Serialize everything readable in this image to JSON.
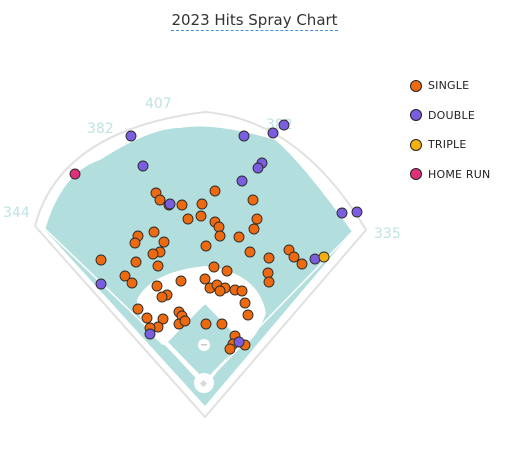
{
  "chart_data": {
    "type": "scatter",
    "title": "2023 Hits Spray Chart",
    "fence_distances": [
      "344",
      "382",
      "407",
      "382",
      "335"
    ],
    "legend_position": "top-right",
    "series": [
      {
        "name": "SINGLE",
        "color": "#ee6a10",
        "points": [
          [
            156,
            193
          ],
          [
            160,
            200
          ],
          [
            169,
            205
          ],
          [
            215,
            191
          ],
          [
            202,
            204
          ],
          [
            182,
            205
          ],
          [
            253,
            200
          ],
          [
            201,
            216
          ],
          [
            188,
            219
          ],
          [
            215,
            222
          ],
          [
            219,
            227
          ],
          [
            257,
            219
          ],
          [
            138,
            236
          ],
          [
            135,
            243
          ],
          [
            154,
            232
          ],
          [
            164,
            242
          ],
          [
            160,
            252
          ],
          [
            153,
            254
          ],
          [
            136,
            262
          ],
          [
            220,
            236
          ],
          [
            254,
            229
          ],
          [
            206,
            246
          ],
          [
            239,
            237
          ],
          [
            250,
            252
          ],
          [
            289,
            250
          ],
          [
            101,
            260
          ],
          [
            125,
            276
          ],
          [
            132,
            283
          ],
          [
            158,
            266
          ],
          [
            157,
            286
          ],
          [
            181,
            281
          ],
          [
            214,
            267
          ],
          [
            227,
            271
          ],
          [
            205,
            279
          ],
          [
            269,
            258
          ],
          [
            294,
            257
          ],
          [
            302,
            264
          ],
          [
            268,
            273
          ],
          [
            269,
            282
          ],
          [
            167,
            295
          ],
          [
            162,
            297
          ],
          [
            210,
            288
          ],
          [
            217,
            285
          ],
          [
            225,
            288
          ],
          [
            220,
            291
          ],
          [
            235,
            290
          ],
          [
            242,
            291
          ],
          [
            245,
            303
          ],
          [
            138,
            309
          ],
          [
            179,
            312
          ],
          [
            182,
            316
          ],
          [
            147,
            318
          ],
          [
            163,
            319
          ],
          [
            158,
            327
          ],
          [
            150,
            328
          ],
          [
            179,
            324
          ],
          [
            185,
            321
          ],
          [
            206,
            324
          ],
          [
            222,
            324
          ],
          [
            248,
            315
          ],
          [
            235,
            336
          ],
          [
            233,
            344
          ],
          [
            245,
            345
          ],
          [
            230,
            349
          ]
        ]
      },
      {
        "name": "DOUBLE",
        "color": "#7b5de0",
        "points": [
          [
            131,
            136
          ],
          [
            244,
            136
          ],
          [
            273,
            133
          ],
          [
            284,
            125
          ],
          [
            143,
            166
          ],
          [
            262,
            163
          ],
          [
            258,
            168
          ],
          [
            242,
            181
          ],
          [
            170,
            204
          ],
          [
            342,
            213
          ],
          [
            357,
            212
          ],
          [
            315,
            259
          ],
          [
            101,
            284
          ],
          [
            150,
            334
          ],
          [
            239,
            342
          ]
        ]
      },
      {
        "name": "TRIPLE",
        "color": "#f2b10c",
        "points": [
          [
            324,
            257
          ]
        ]
      },
      {
        "name": "HOME RUN",
        "color": "#e0307a",
        "points": [
          [
            75,
            174
          ]
        ]
      }
    ]
  }
}
